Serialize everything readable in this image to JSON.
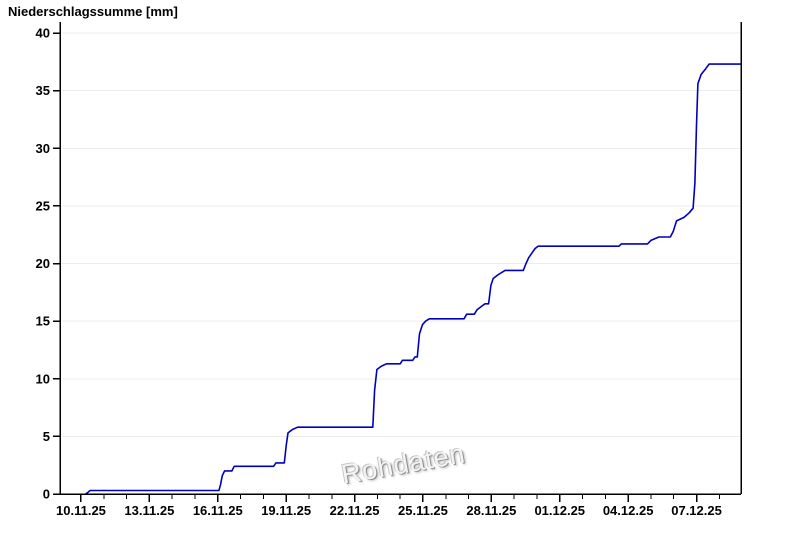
{
  "chart_data": {
    "type": "line",
    "subtype": "cumulative-step",
    "title": "Niederschlagssumme [mm]",
    "ylabel": "Niederschlagssumme [mm]",
    "xlabel": "",
    "watermark": "Rohdaten",
    "x_unit": "days since 10.11.25 00:00",
    "xlim_days": [
      -0.92,
      28.95
    ],
    "ylim": [
      0,
      41
    ],
    "yticks": [
      0,
      5,
      10,
      15,
      20,
      25,
      30,
      35,
      40
    ],
    "x_major_ticks": [
      {
        "day": 0,
        "label": "10.11.25"
      },
      {
        "day": 3,
        "label": "13.11.25"
      },
      {
        "day": 6,
        "label": "16.11.25"
      },
      {
        "day": 9,
        "label": "19.11.25"
      },
      {
        "day": 12,
        "label": "22.11.25"
      },
      {
        "day": 15,
        "label": "25.11.25"
      },
      {
        "day": 18,
        "label": "28.11.25"
      },
      {
        "day": 21,
        "label": "01.12.25"
      },
      {
        "day": 24,
        "label": "04.12.25"
      },
      {
        "day": 27,
        "label": "07.12.25"
      }
    ],
    "x_minor_step_days": 1,
    "x_minor_day_range": [
      0,
      28
    ],
    "grid": {
      "horizontal": true,
      "vertical": false,
      "color": "#ececec"
    },
    "axis_color": "#000000",
    "line_color": "#0000bf",
    "background": "#ffffff",
    "series": [
      {
        "name": "Niederschlagssumme",
        "points": [
          [
            0.2,
            0.0
          ],
          [
            0.28,
            0.1
          ],
          [
            0.4,
            0.3
          ],
          [
            6.05,
            0.3
          ],
          [
            6.12,
            0.8
          ],
          [
            6.2,
            1.6
          ],
          [
            6.3,
            2.0
          ],
          [
            6.62,
            2.0
          ],
          [
            6.72,
            2.4
          ],
          [
            8.45,
            2.4
          ],
          [
            8.55,
            2.7
          ],
          [
            8.92,
            2.7
          ],
          [
            9.0,
            4.2
          ],
          [
            9.08,
            5.3
          ],
          [
            9.28,
            5.6
          ],
          [
            9.5,
            5.8
          ],
          [
            12.8,
            5.8
          ],
          [
            12.88,
            9.0
          ],
          [
            12.98,
            10.8
          ],
          [
            13.18,
            11.1
          ],
          [
            13.4,
            11.3
          ],
          [
            14.0,
            11.3
          ],
          [
            14.1,
            11.6
          ],
          [
            14.55,
            11.6
          ],
          [
            14.65,
            11.9
          ],
          [
            14.75,
            11.9
          ],
          [
            14.85,
            13.9
          ],
          [
            14.98,
            14.7
          ],
          [
            15.12,
            15.0
          ],
          [
            15.28,
            15.2
          ],
          [
            16.8,
            15.2
          ],
          [
            16.92,
            15.6
          ],
          [
            17.25,
            15.6
          ],
          [
            17.38,
            16.0
          ],
          [
            17.58,
            16.3
          ],
          [
            17.72,
            16.5
          ],
          [
            17.88,
            16.5
          ],
          [
            17.98,
            18.1
          ],
          [
            18.08,
            18.7
          ],
          [
            18.28,
            19.0
          ],
          [
            18.6,
            19.4
          ],
          [
            19.4,
            19.4
          ],
          [
            19.52,
            20.0
          ],
          [
            19.64,
            20.5
          ],
          [
            19.78,
            20.9
          ],
          [
            19.92,
            21.3
          ],
          [
            20.05,
            21.5
          ],
          [
            23.6,
            21.5
          ],
          [
            23.7,
            21.7
          ],
          [
            24.85,
            21.7
          ],
          [
            25.0,
            22.0
          ],
          [
            25.35,
            22.3
          ],
          [
            25.85,
            22.3
          ],
          [
            25.98,
            22.8
          ],
          [
            26.12,
            23.7
          ],
          [
            26.45,
            24.0
          ],
          [
            26.68,
            24.4
          ],
          [
            26.85,
            24.8
          ],
          [
            26.93,
            27.0
          ],
          [
            27.0,
            32.0
          ],
          [
            27.06,
            35.6
          ],
          [
            27.2,
            36.4
          ],
          [
            27.4,
            36.9
          ],
          [
            27.55,
            37.3
          ],
          [
            28.95,
            37.3
          ]
        ]
      }
    ]
  }
}
